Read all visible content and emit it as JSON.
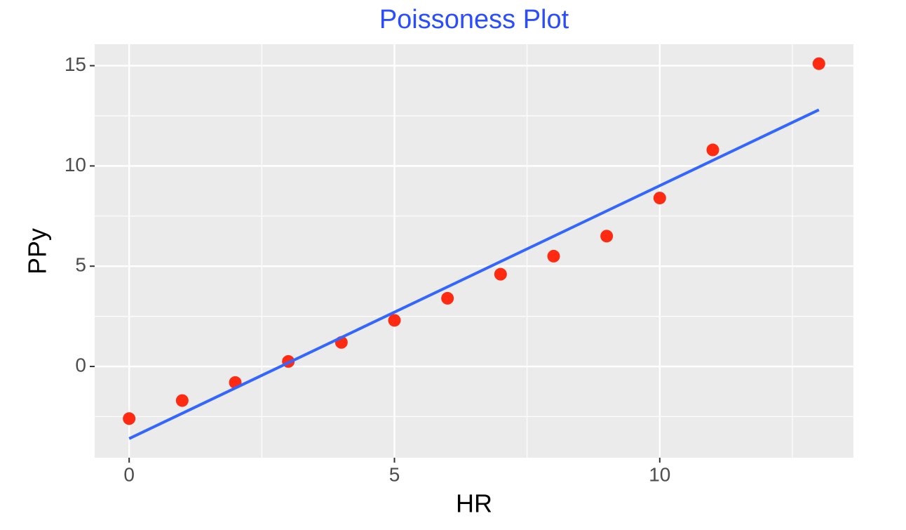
{
  "chart_data": {
    "type": "scatter",
    "title": "Poissoness Plot",
    "title_color": "#2a4dff",
    "x_label": "HR",
    "y_label": "PPy",
    "series": [
      {
        "kind": "points",
        "color": "#ff2a12",
        "x": [
          0,
          1,
          2,
          3,
          4,
          5,
          6,
          7,
          8,
          9,
          10,
          11,
          13
        ],
        "values": [
          -2.6,
          -1.7,
          -0.8,
          0.25,
          1.2,
          2.3,
          3.4,
          4.6,
          5.5,
          6.5,
          8.4,
          10.8,
          15.1
        ]
      },
      {
        "kind": "line",
        "color": "#3366ff",
        "x": [
          0,
          13
        ],
        "values": [
          -3.6,
          12.8
        ]
      }
    ],
    "xlim": [
      -0.65,
      13.65
    ],
    "ylim": [
      -4.55,
      16.07
    ],
    "xticks": [
      0,
      5,
      10
    ],
    "yticks": [
      0,
      5,
      10,
      15
    ],
    "grid": true
  }
}
